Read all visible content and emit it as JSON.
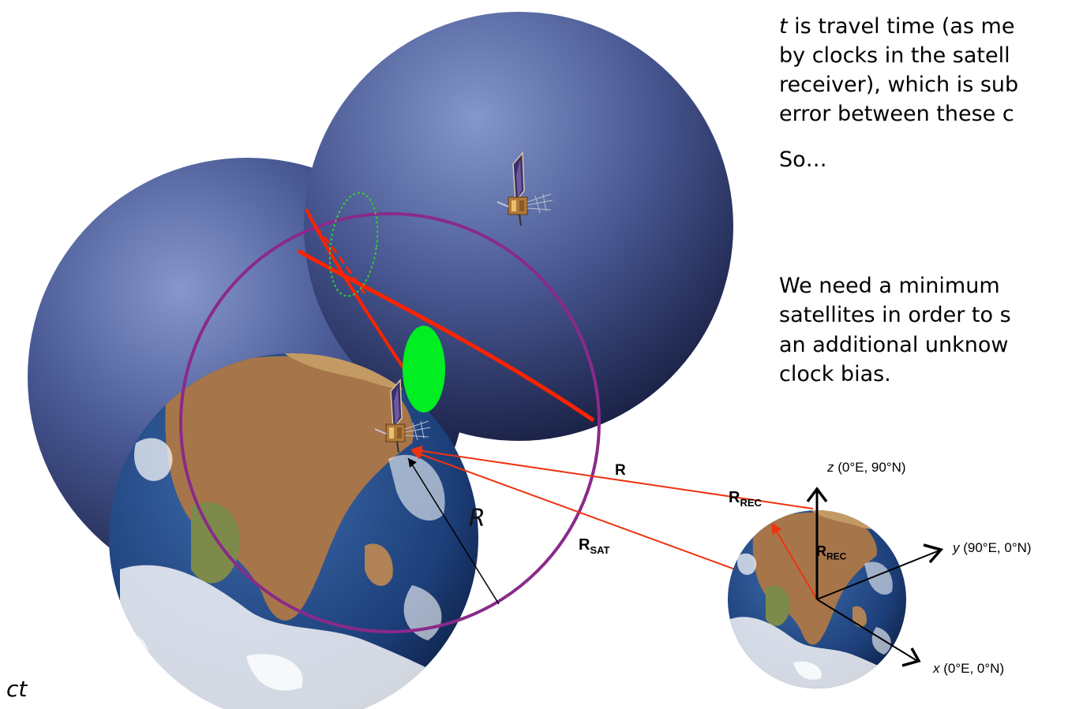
{
  "text_block": {
    "lines": [
      {
        "italic": "t",
        "rest": " is travel time (as me"
      },
      {
        "italic": "",
        "rest": "by clocks in the satell"
      },
      {
        "italic": "",
        "rest": "receiver), which is sub"
      },
      {
        "italic": "",
        "rest": "error between these c"
      }
    ],
    "so": "So…",
    "need_lines": [
      "We need a minimum",
      "satellites in order to s",
      "an additional unknow",
      "clock bias."
    ]
  },
  "labels": {
    "ct": "ct",
    "R_italic": "R",
    "R_bold": "R",
    "R_rec_base": "R",
    "R_rec_sub": "REC",
    "R_sat_base": "R",
    "R_sat_sub": "SAT",
    "R_rec2_base": "R",
    "R_rec2_sub": "REC"
  },
  "axes": {
    "z": {
      "name": "z",
      "coord": " (0°E, 90°N)"
    },
    "y": {
      "name": "y",
      "coord": " (90°E, 0°N)"
    },
    "x": {
      "name": "x",
      "coord": " (0°E, 0°N)"
    }
  },
  "colors": {
    "sphere_light": "#7a8cc4",
    "sphere_dark": "#141a40",
    "range_arc": "#ff2200",
    "purple_circle": "#8a2a8a",
    "green_ellipse": "#00ee22",
    "vector_red": "#ee3311",
    "ocean": "#1d3f7a",
    "land": "#a7754a",
    "cloud": "#f4f6f8"
  },
  "icons": {
    "satellite": "satellite-icon",
    "earth": "earth-globe-icon"
  }
}
